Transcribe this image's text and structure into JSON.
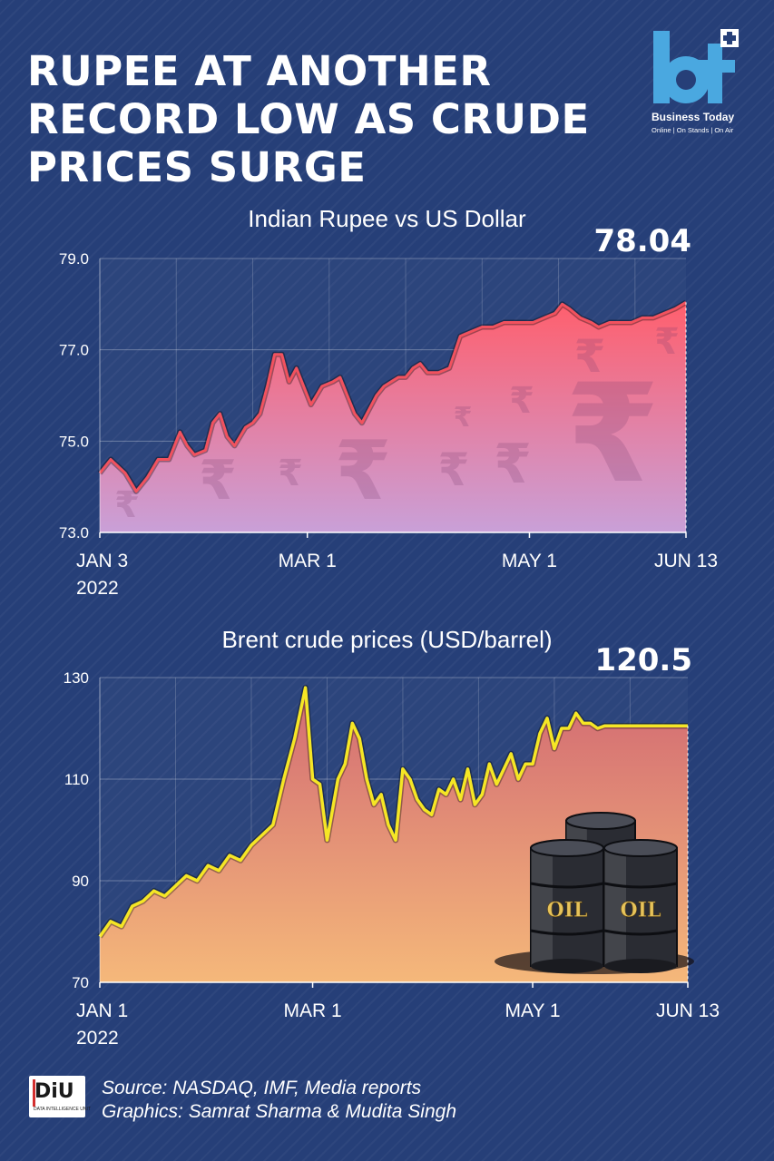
{
  "header": {
    "title": "RUPEE AT ANOTHER RECORD LOW AS CRUDE PRICES SURGE"
  },
  "logo": {
    "mark": "bt",
    "name": "Business Today",
    "tagline": "Online | On Stands | On Air"
  },
  "colors": {
    "background": "#263f78",
    "rupee_line": "#f2525e",
    "brent_line": "#f5e625",
    "accent": "#4aa8e0"
  },
  "chart_data": [
    {
      "type": "area",
      "title": "Indian Rupee vs US Dollar",
      "x_ticks": [
        {
          "label": "JAN 3",
          "label2": "2022",
          "day": 2
        },
        {
          "label": "MAR 1",
          "day": 59
        },
        {
          "label": "MAY 1",
          "day": 120
        },
        {
          "label": "JUN 13",
          "day": 163
        }
      ],
      "x_range": [
        2,
        163
      ],
      "ylim": [
        73.0,
        79.0
      ],
      "y_ticks": [
        "73.0",
        "75.0",
        "77.0",
        "79.0"
      ],
      "grid": true,
      "end_label": "78.04",
      "background_icon": "rupee-symbol",
      "series": [
        {
          "x": [
            2,
            5,
            9,
            12,
            15,
            18,
            21,
            24,
            26,
            28,
            31,
            33,
            35,
            37,
            39,
            42,
            44,
            46,
            48,
            50,
            52,
            54,
            56,
            58,
            60,
            63,
            66,
            68,
            70,
            72,
            74,
            76,
            78,
            80,
            82,
            84,
            86,
            88,
            90,
            92,
            95,
            98,
            101,
            104,
            107,
            110,
            113,
            115,
            117,
            119,
            121,
            124,
            127,
            129,
            131,
            134,
            137,
            139,
            142,
            145,
            148,
            151,
            154,
            157,
            160,
            163
          ],
          "y": [
            74.3,
            74.6,
            74.3,
            73.9,
            74.2,
            74.6,
            74.6,
            75.2,
            74.9,
            74.7,
            74.8,
            75.4,
            75.6,
            75.1,
            74.9,
            75.3,
            75.4,
            75.6,
            76.2,
            76.9,
            76.9,
            76.3,
            76.6,
            76.2,
            75.8,
            76.2,
            76.3,
            76.4,
            76.0,
            75.6,
            75.4,
            75.7,
            76.0,
            76.2,
            76.3,
            76.4,
            76.4,
            76.6,
            76.7,
            76.5,
            76.5,
            76.6,
            77.3,
            77.4,
            77.5,
            77.5,
            77.6,
            77.6,
            77.6,
            77.6,
            77.6,
            77.7,
            77.8,
            78.0,
            77.9,
            77.7,
            77.6,
            77.5,
            77.6,
            77.6,
            77.6,
            77.7,
            77.7,
            77.8,
            77.9,
            78.04
          ]
        }
      ]
    },
    {
      "type": "area",
      "title": "Brent crude prices (USD/barrel)",
      "x_ticks": [
        {
          "label": "JAN 1",
          "label2": "2022",
          "day": 0
        },
        {
          "label": "MAR 1",
          "day": 59
        },
        {
          "label": "MAY 1",
          "day": 120
        },
        {
          "label": "JUN 13",
          "day": 163
        }
      ],
      "x_range": [
        0,
        163
      ],
      "ylim": [
        70,
        130
      ],
      "y_ticks": [
        "70",
        "90",
        "110",
        "130"
      ],
      "grid": true,
      "end_label": "120.5",
      "decoration": {
        "label": "OIL",
        "icon": "oil-barrels"
      },
      "series": [
        {
          "x": [
            0,
            3,
            6,
            9,
            12,
            15,
            18,
            21,
            24,
            27,
            30,
            33,
            36,
            39,
            42,
            45,
            48,
            51,
            54,
            57,
            59,
            61,
            63,
            66,
            68,
            70,
            72,
            74,
            76,
            78,
            80,
            82,
            84,
            86,
            88,
            90,
            92,
            94,
            96,
            98,
            100,
            102,
            104,
            106,
            108,
            110,
            112,
            114,
            116,
            118,
            120,
            122,
            124,
            126,
            128,
            130,
            132,
            134,
            136,
            138,
            140,
            142,
            144,
            146,
            148,
            150,
            152,
            154,
            156,
            158,
            160,
            163
          ],
          "y": [
            79,
            82,
            81,
            85,
            86,
            88,
            87,
            89,
            91,
            90,
            93,
            92,
            95,
            94,
            97,
            99,
            101,
            110,
            118,
            128,
            110,
            109,
            98,
            110,
            113,
            121,
            118,
            110,
            105,
            107,
            101,
            98,
            112,
            110,
            106,
            104,
            103,
            108,
            107,
            110,
            106,
            112,
            105,
            107,
            113,
            109,
            112,
            115,
            110,
            113,
            113,
            119,
            122,
            116,
            120,
            120,
            123,
            121,
            121,
            120,
            120.5,
            120.5,
            120.5,
            120.5,
            120.5,
            120.5,
            120.5,
            120.5,
            120.5,
            120.5,
            120.5,
            120.5
          ]
        }
      ]
    }
  ],
  "footer": {
    "badge": "DiU",
    "badge_sub": "DATA INTELLIGENCE UNIT",
    "source": "Source: NASDAQ, IMF, Media reports",
    "graphics": "Graphics: Samrat Sharma & Mudita Singh"
  }
}
